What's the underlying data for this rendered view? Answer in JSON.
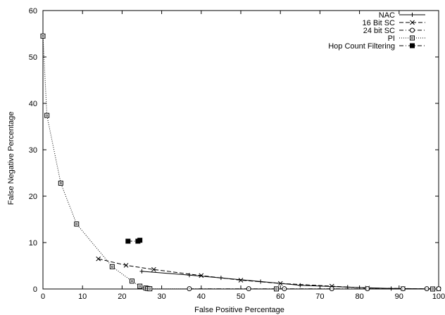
{
  "chart_data": {
    "type": "line",
    "title": "",
    "xlabel": "False Positive Percentage",
    "ylabel": "False Negative Percentage",
    "xlim": [
      0,
      100
    ],
    "ylim": [
      0,
      60
    ],
    "x_ticks": [
      "0",
      "10",
      "20",
      "30",
      "40",
      "50",
      "60",
      "70",
      "80",
      "90",
      "100"
    ],
    "y_ticks": [
      "0",
      "10",
      "20",
      "30",
      "40",
      "50",
      "60"
    ],
    "grid": false,
    "legend_position": "top-right",
    "series": [
      {
        "name": "NAC",
        "marker": "plus",
        "dash": "solid",
        "points": [
          [
            25,
            3.8
          ],
          [
            37,
            3.0
          ],
          [
            45,
            2.4
          ],
          [
            55,
            1.6
          ],
          [
            65,
            0.8
          ],
          [
            77,
            0.4
          ],
          [
            88,
            0.1
          ],
          [
            99,
            0
          ]
        ]
      },
      {
        "name": "16 Bit SC",
        "marker": "cross",
        "dash": "dashed",
        "points": [
          [
            14,
            6.5
          ],
          [
            21,
            5.1
          ],
          [
            28,
            4.2
          ],
          [
            40,
            2.9
          ],
          [
            50,
            1.9
          ],
          [
            60,
            1.2
          ],
          [
            73,
            0.6
          ],
          [
            82,
            0.2
          ],
          [
            91,
            0.1
          ],
          [
            100,
            0
          ]
        ]
      },
      {
        "name": "24 bit SC",
        "marker": "circle",
        "dash": "dashdot",
        "points": [
          [
            37,
            0.05
          ],
          [
            52,
            0.05
          ],
          [
            61,
            0.05
          ],
          [
            73,
            0.05
          ],
          [
            82,
            0.05
          ],
          [
            91,
            0.05
          ],
          [
            97,
            0.05
          ],
          [
            100,
            0.05
          ]
        ]
      },
      {
        "name": "PI",
        "marker": "square",
        "dash": "dotted",
        "points": [
          [
            0,
            54.5
          ],
          [
            1,
            37.4
          ],
          [
            4.5,
            22.8
          ],
          [
            8.5,
            14.0
          ],
          [
            17.5,
            4.8
          ],
          [
            22.5,
            1.7
          ],
          [
            24.5,
            0.6
          ],
          [
            26,
            0.2
          ],
          [
            26.5,
            0.1
          ],
          [
            27,
            0.05
          ],
          [
            59,
            0.02
          ],
          [
            98.5,
            0
          ]
        ]
      },
      {
        "name": "Hop Count Filtering",
        "marker": "filled-square",
        "dash": "dashdot",
        "points": [
          [
            21.5,
            10.3
          ],
          [
            24,
            10.3
          ],
          [
            24.5,
            10.5
          ]
        ]
      }
    ]
  }
}
